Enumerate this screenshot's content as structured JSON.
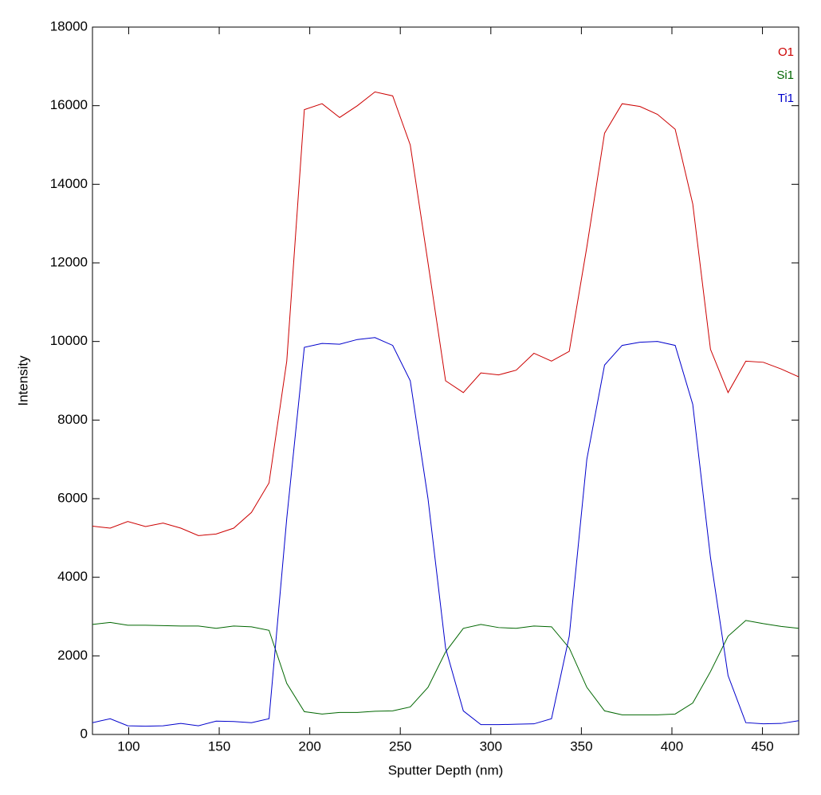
{
  "chart_data": {
    "type": "line",
    "xlabel": "Sputter Depth (nm)",
    "ylabel": "Intensity",
    "x": [
      80,
      89.8,
      99.5,
      109.3,
      119,
      128.8,
      138.5,
      148.3,
      158,
      167.8,
      177.5,
      187.3,
      197,
      206.8,
      216.5,
      226.3,
      236,
      245.8,
      255.5,
      265.3,
      275,
      284.8,
      294.5,
      304.3,
      314,
      323.8,
      333.5,
      343.3,
      353,
      362.8,
      372.5,
      382.3,
      392,
      401.8,
      411.5,
      421.3,
      431,
      440.8,
      450.5,
      460.3,
      470
    ],
    "series": [
      {
        "name": "O1",
        "color": "#cc0000",
        "values": [
          5300,
          5250,
          5420,
          5290,
          5380,
          5250,
          5060,
          5100,
          5250,
          5650,
          6400,
          9500,
          15900,
          16050,
          15700,
          16000,
          16350,
          16250,
          15000,
          12000,
          9000,
          8700,
          9200,
          9150,
          9270,
          9700,
          9500,
          9750,
          12400,
          15300,
          16050,
          15980,
          15780,
          15400,
          13500,
          9800,
          8700,
          9500,
          9470,
          9300,
          9100
        ]
      },
      {
        "name": "Si1",
        "color": "#006600",
        "values": [
          2800,
          2850,
          2780,
          2780,
          2770,
          2760,
          2760,
          2700,
          2760,
          2740,
          2650,
          1300,
          580,
          520,
          560,
          560,
          590,
          600,
          700,
          1200,
          2100,
          2700,
          2800,
          2720,
          2700,
          2760,
          2740,
          2200,
          1200,
          600,
          500,
          500,
          500,
          520,
          800,
          1600,
          2500,
          2900,
          2820,
          2750,
          2700
        ]
      },
      {
        "name": "Ti1",
        "color": "#0000cc",
        "values": [
          300,
          400,
          220,
          210,
          220,
          280,
          220,
          340,
          330,
          300,
          400,
          5500,
          9850,
          9950,
          9930,
          10050,
          10100,
          9900,
          9000,
          6000,
          2200,
          600,
          250,
          250,
          260,
          270,
          400,
          2500,
          7000,
          9400,
          9900,
          9980,
          10000,
          9900,
          8400,
          4500,
          1500,
          300,
          270,
          280,
          350
        ]
      }
    ],
    "xlim": [
      80,
      470
    ],
    "xticks": [
      100,
      150,
      200,
      250,
      300,
      350,
      400,
      450
    ],
    "ylim": [
      0,
      18000
    ],
    "yticks": [
      0,
      2000,
      4000,
      6000,
      8000,
      10000,
      12000,
      14000,
      16000,
      18000
    ],
    "legend": "upper right"
  }
}
